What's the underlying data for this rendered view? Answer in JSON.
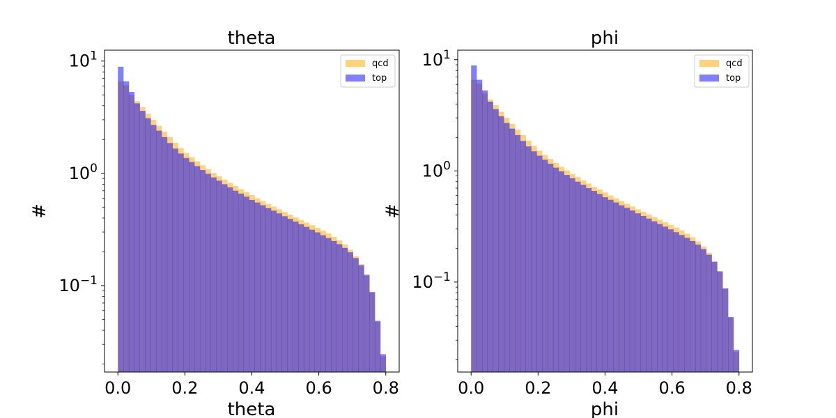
{
  "chart_data": [
    {
      "type": "bar",
      "title": "theta",
      "xlabel": "theta",
      "ylabel": "#",
      "yscale": "log",
      "xlim": [
        -0.04,
        0.84
      ],
      "ylim": [
        0.017,
        12.5
      ],
      "xticks": [
        "0.0",
        "0.2",
        "0.4",
        "0.6",
        "0.8"
      ],
      "yticks": [
        {
          "base": "10",
          "exp": "1"
        },
        {
          "base": "10",
          "exp": "0"
        },
        {
          "base": "10",
          "exp": "−1"
        }
      ],
      "legend_position": "top-right",
      "bin_edges_start": 0.0,
      "bin_edges_end": 0.8,
      "series": [
        {
          "name": "qcd",
          "color": "#ffa500",
          "alpha": 0.5,
          "values": [
            6.6,
            6.1,
            5.0,
            4.4,
            3.9,
            3.4,
            3.0,
            2.65,
            2.35,
            2.1,
            1.87,
            1.68,
            1.52,
            1.39,
            1.28,
            1.18,
            1.09,
            1.01,
            0.94,
            0.88,
            0.82,
            0.77,
            0.72,
            0.68,
            0.64,
            0.6,
            0.565,
            0.535,
            0.505,
            0.478,
            0.452,
            0.428,
            0.405,
            0.384,
            0.364,
            0.345,
            0.327,
            0.309,
            0.291,
            0.272,
            0.253,
            0.232,
            0.209,
            0.183,
            0.155,
            0.122,
            0.0875,
            0.0475,
            0.0235
          ]
        },
        {
          "name": "top",
          "color": "#0000ff",
          "alpha": 0.5,
          "values": [
            8.9,
            6.6,
            5.3,
            4.2,
            3.6,
            3.1,
            2.7,
            2.4,
            2.1,
            1.86,
            1.66,
            1.5,
            1.37,
            1.26,
            1.16,
            1.07,
            0.99,
            0.92,
            0.86,
            0.8,
            0.75,
            0.7,
            0.66,
            0.62,
            0.58,
            0.55,
            0.52,
            0.49,
            0.465,
            0.44,
            0.415,
            0.393,
            0.372,
            0.352,
            0.333,
            0.315,
            0.298,
            0.281,
            0.265,
            0.25,
            0.234,
            0.217,
            0.198,
            0.176,
            0.152,
            0.125,
            0.0875,
            0.0485,
            0.0245
          ]
        }
      ]
    },
    {
      "type": "bar",
      "title": "phi",
      "xlabel": "phi",
      "ylabel": "#",
      "yscale": "log",
      "xlim": [
        -0.04,
        0.84
      ],
      "ylim": [
        0.0155,
        12.2
      ],
      "xticks": [
        "0.0",
        "0.2",
        "0.4",
        "0.6",
        "0.8"
      ],
      "yticks": [
        {
          "base": "10",
          "exp": "1"
        },
        {
          "base": "10",
          "exp": "0"
        },
        {
          "base": "10",
          "exp": "−1"
        }
      ],
      "legend_position": "top-right",
      "bin_edges_start": 0.0,
      "bin_edges_end": 0.8,
      "series": [
        {
          "name": "qcd",
          "color": "#ffa500",
          "alpha": 0.5,
          "values": [
            6.6,
            6.1,
            5.0,
            4.4,
            3.9,
            3.4,
            3.0,
            2.65,
            2.35,
            2.1,
            1.87,
            1.68,
            1.52,
            1.39,
            1.28,
            1.18,
            1.09,
            1.01,
            0.94,
            0.88,
            0.82,
            0.77,
            0.72,
            0.68,
            0.64,
            0.6,
            0.565,
            0.535,
            0.505,
            0.478,
            0.452,
            0.428,
            0.405,
            0.384,
            0.364,
            0.345,
            0.327,
            0.309,
            0.291,
            0.272,
            0.253,
            0.232,
            0.209,
            0.183,
            0.155,
            0.122,
            0.0875,
            0.0475,
            0.0235
          ]
        },
        {
          "name": "top",
          "color": "#0000ff",
          "alpha": 0.5,
          "values": [
            8.9,
            6.6,
            5.3,
            4.2,
            3.6,
            3.1,
            2.7,
            2.4,
            2.1,
            1.86,
            1.66,
            1.5,
            1.37,
            1.26,
            1.16,
            1.07,
            0.99,
            0.92,
            0.86,
            0.8,
            0.75,
            0.7,
            0.66,
            0.62,
            0.58,
            0.55,
            0.52,
            0.49,
            0.465,
            0.44,
            0.415,
            0.393,
            0.372,
            0.352,
            0.333,
            0.315,
            0.298,
            0.281,
            0.265,
            0.25,
            0.234,
            0.217,
            0.198,
            0.176,
            0.152,
            0.125,
            0.0875,
            0.0485,
            0.0245
          ]
        }
      ]
    }
  ]
}
